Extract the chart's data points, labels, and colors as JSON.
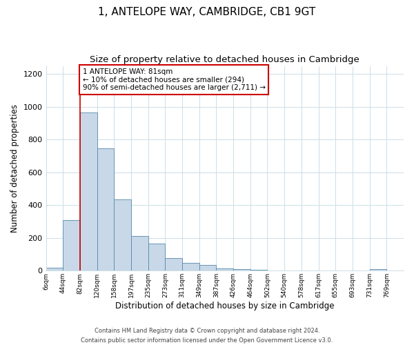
{
  "title": "1, ANTELOPE WAY, CAMBRIDGE, CB1 9GT",
  "subtitle": "Size of property relative to detached houses in Cambridge",
  "xlabel": "Distribution of detached houses by size in Cambridge",
  "ylabel": "Number of detached properties",
  "bar_labels": [
    "6sqm",
    "44sqm",
    "82sqm",
    "120sqm",
    "158sqm",
    "197sqm",
    "235sqm",
    "273sqm",
    "311sqm",
    "349sqm",
    "387sqm",
    "426sqm",
    "464sqm",
    "502sqm",
    "540sqm",
    "578sqm",
    "617sqm",
    "655sqm",
    "693sqm",
    "731sqm",
    "769sqm"
  ],
  "bar_heights": [
    20,
    310,
    965,
    745,
    435,
    210,
    165,
    75,
    48,
    33,
    15,
    10,
    5,
    0,
    0,
    0,
    0,
    0,
    0,
    8,
    0
  ],
  "bar_color": "#c8d8e8",
  "bar_edge_color": "#5588aa",
  "property_line_x": 2,
  "property_line_color": "#cc0000",
  "ylim": [
    0,
    1250
  ],
  "yticks": [
    0,
    200,
    400,
    600,
    800,
    1000,
    1200
  ],
  "annotation_line1": "1 ANTELOPE WAY: 81sqm",
  "annotation_line2": "← 10% of detached houses are smaller (294)",
  "annotation_line3": "90% of semi-detached houses are larger (2,711) →",
  "annotation_box_color": "#ffffff",
  "annotation_box_edge_color": "#cc0000",
  "footer_line1": "Contains HM Land Registry data © Crown copyright and database right 2024.",
  "footer_line2": "Contains public sector information licensed under the Open Government Licence v3.0.",
  "background_color": "#ffffff",
  "grid_color": "#ccdde8",
  "title_fontsize": 11,
  "subtitle_fontsize": 9.5,
  "ylabel_fontsize": 8.5,
  "xlabel_fontsize": 8.5
}
